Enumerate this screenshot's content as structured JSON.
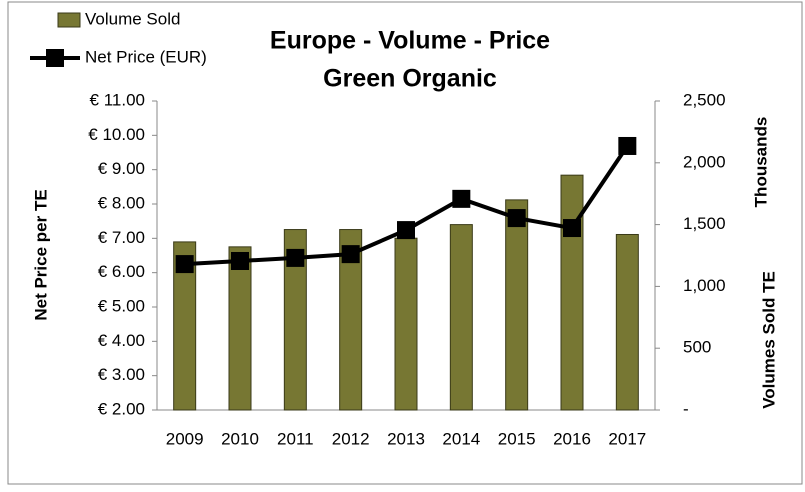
{
  "chart_data": {
    "type": "bar-line",
    "title": "Europe - Volume - Price",
    "subtitle": "Green Organic",
    "y_label": "Net Price per TE",
    "y2_label": "Volumes Sold TE",
    "y2_unit_label": "Thousands",
    "categories": [
      "2009",
      "2010",
      "2011",
      "2012",
      "2013",
      "2014",
      "2015",
      "2016",
      "2017"
    ],
    "series": [
      {
        "name": "Volume Sold",
        "type": "bar",
        "axis": "y2",
        "color": "#777733",
        "values": [
          1360,
          1320,
          1460,
          1460,
          1390,
          1500,
          1700,
          1900,
          1420
        ]
      },
      {
        "name": "Net Price (EUR)",
        "type": "line",
        "axis": "y",
        "color": "#000000",
        "values": [
          6.25,
          6.34,
          6.43,
          6.54,
          7.24,
          8.15,
          7.59,
          7.3,
          9.69
        ]
      }
    ],
    "ylim": [
      2,
      11
    ],
    "yticks": [
      {
        "value": 2,
        "label": "€ 2.00"
      },
      {
        "value": 3,
        "label": "€ 3.00"
      },
      {
        "value": 4,
        "label": "€ 4.00"
      },
      {
        "value": 5,
        "label": "€ 5.00"
      },
      {
        "value": 6,
        "label": "€ 6.00"
      },
      {
        "value": 7,
        "label": "€ 7.00"
      },
      {
        "value": 8,
        "label": "€ 8.00"
      },
      {
        "value": 9,
        "label": "€ 9.00"
      },
      {
        "value": 10,
        "label": "€ 10.00"
      },
      {
        "value": 11,
        "label": "€ 11.00"
      }
    ],
    "y2lim": [
      0,
      2500
    ],
    "y2ticks": [
      {
        "value": 0,
        "label": "-"
      },
      500,
      {
        "value": 1000,
        "label": "1,000"
      },
      {
        "value": 1500,
        "label": "1,500"
      },
      {
        "value": 2000,
        "label": "2,000"
      },
      {
        "value": 2500,
        "label": "2,500"
      }
    ],
    "legend": "top-left"
  }
}
